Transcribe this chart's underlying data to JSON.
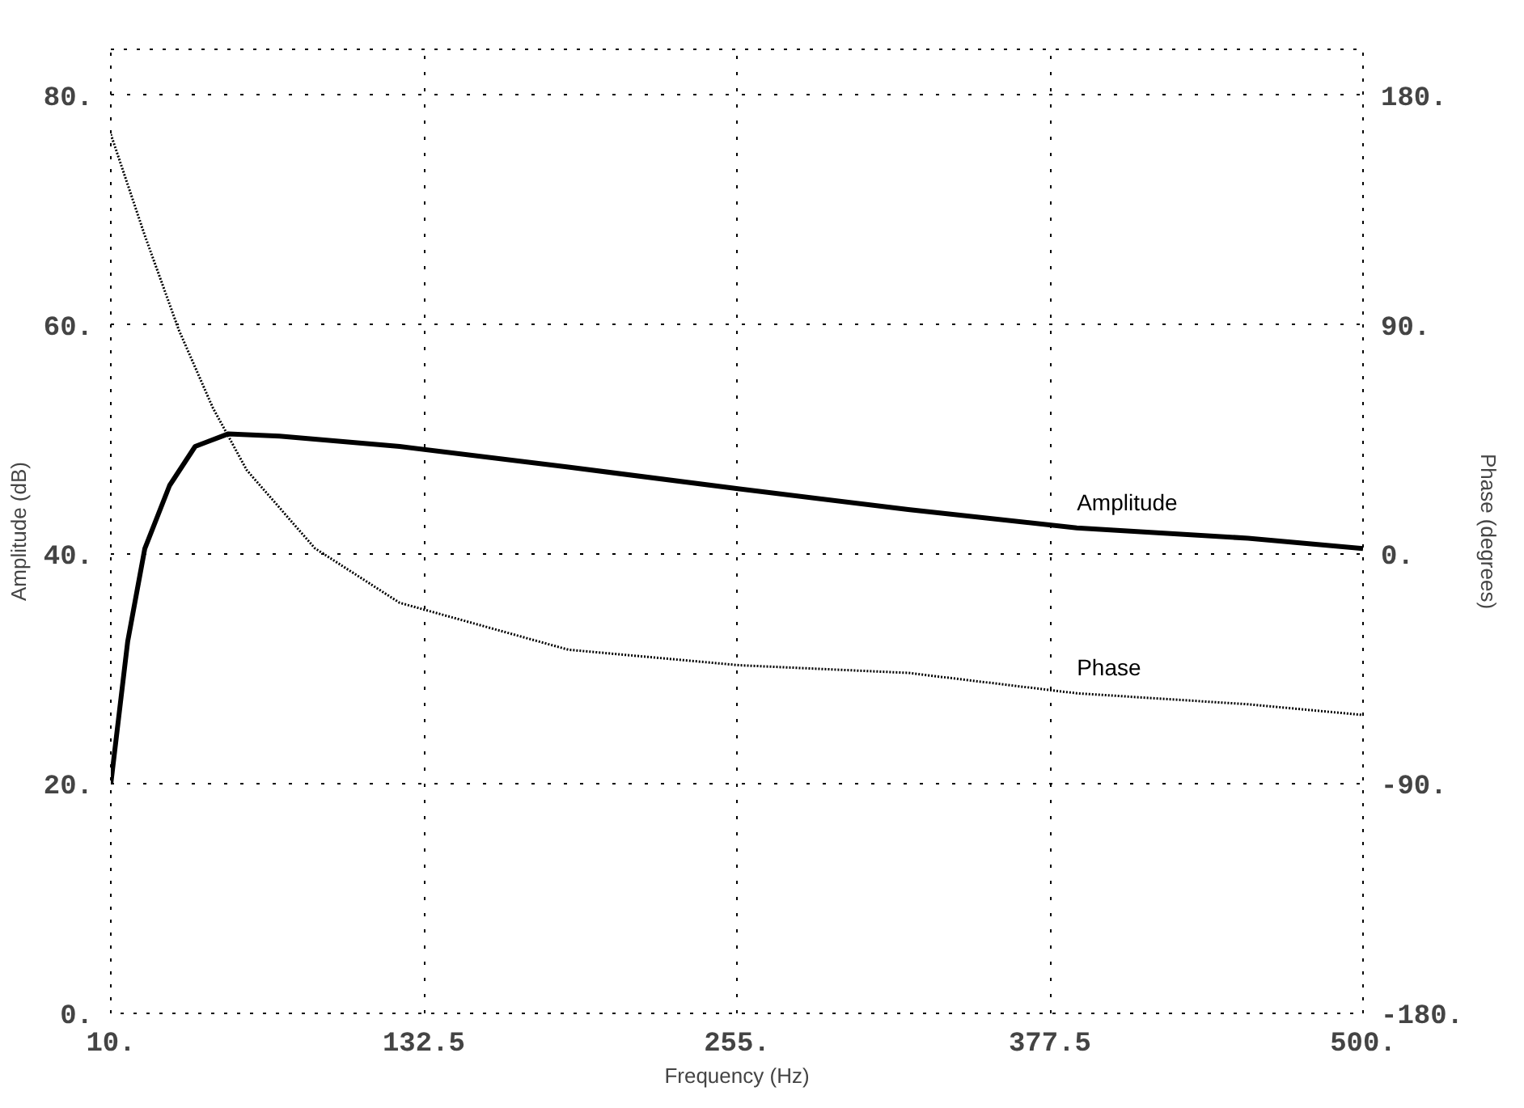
{
  "chart_data": {
    "type": "line",
    "xlabel": "Frequency (Hz)",
    "ylabel": "Amplitude (dB)",
    "y2label": "Phase (degrees)",
    "xlim": [
      10,
      500
    ],
    "ylim": [
      0,
      84
    ],
    "y2lim": [
      -180,
      198
    ],
    "xticks": [
      {
        "value": 10,
        "label": "10."
      },
      {
        "value": 132.5,
        "label": "132.5"
      },
      {
        "value": 255,
        "label": "255."
      },
      {
        "value": 377.5,
        "label": "377.5"
      },
      {
        "value": 500,
        "label": "500."
      }
    ],
    "yticks": [
      {
        "value": 0,
        "label": "0."
      },
      {
        "value": 20,
        "label": "20."
      },
      {
        "value": 40,
        "label": "40."
      },
      {
        "value": 60,
        "label": "60."
      },
      {
        "value": 80,
        "label": "80."
      }
    ],
    "y2ticks": [
      {
        "value": -180,
        "label": "-180."
      },
      {
        "value": -90,
        "label": "-90."
      },
      {
        "value": 0,
        "label": "0."
      },
      {
        "value": 90,
        "label": "90."
      },
      {
        "value": 180,
        "label": "180."
      }
    ],
    "grid": true,
    "series": [
      {
        "name": "Amplitude",
        "color": "#000000",
        "line_style": "solid",
        "x": [
          10,
          16.6,
          23.3,
          33,
          43,
          56,
          76,
          123,
          189,
          256,
          322,
          388,
          455,
          500
        ],
        "values": [
          20,
          32.4,
          40.5,
          46,
          49.4,
          50.5,
          50.3,
          49.4,
          47.6,
          45.7,
          43.9,
          42.3,
          41.4,
          40.5
        ]
      },
      {
        "name": "Phase",
        "color": "#000000",
        "line_style": "dotted",
        "axis": "y2",
        "x": [
          10,
          23.3,
          36.6,
          49.9,
          63.2,
          89.8,
          123,
          189,
          256,
          322,
          388,
          455,
          500
        ],
        "values": [
          164.7,
          125,
          88,
          57.5,
          33,
          2.4,
          -19,
          -37.4,
          -43.5,
          -46.5,
          -54.5,
          -58.8,
          -63
        ]
      }
    ]
  }
}
